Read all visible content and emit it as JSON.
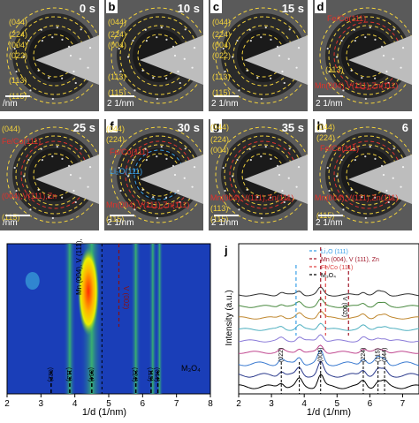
{
  "colors": {
    "yellow": "#f2d23c",
    "red": "#e0322b",
    "blue": "#3aa0e8",
    "diffraction_bg": "#5a5a5a"
  },
  "panels": [
    {
      "letter": "",
      "time": "0 s",
      "labels": [
        "(044)",
        "(224)",
        "(004)",
        "(022)",
        "(113)",
        "(115)"
      ],
      "scale": "/nm"
    },
    {
      "letter": "b",
      "time": "10 s",
      "labels": [
        "(044)",
        "(224)",
        "(004)",
        "(113)",
        "(115)"
      ],
      "scale": "2 1/nm"
    },
    {
      "letter": "c",
      "time": "15 s",
      "labels": [
        "(044)",
        "(224)",
        "(004)",
        "(022)",
        "(113)",
        "(115)"
      ],
      "scale": "2 1/nm"
    },
    {
      "letter": "d",
      "time": "",
      "labels": [
        "Fe/Co(111)",
        "(113)",
        "Mn(004),V(111),Zn(111)"
      ],
      "scale": "2 1/nm"
    },
    {
      "letter": "",
      "time": "25 s",
      "labels": [
        "(044)",
        "Fe/Co(111)",
        "(004),V(111),Zn",
        "(115)"
      ],
      "scale": "/nm"
    },
    {
      "letter": "f",
      "time": "30 s",
      "labels": [
        "(044)",
        "(224)",
        "Fe/Co(111)",
        "Li₂O(111)",
        "Mn(004),V(111),Zn(111)",
        "(115)"
      ],
      "scale": "2 1/nm"
    },
    {
      "letter": "g",
      "time": "35 s",
      "labels": [
        "(044)",
        "(224)",
        "(004)",
        "Mn(004),V(111),Zn(111)",
        "(113)",
        "(115)"
      ],
      "scale": "2 1/nm"
    },
    {
      "letter": "h",
      "time": "6",
      "labels": [
        "(044)",
        "(224)",
        "Fe/Co(111)",
        "Mn(004),V(111),Zn(111)",
        "(115)"
      ],
      "scale": "2 1/nm"
    }
  ],
  "heatmap": {
    "xlabel": "1/d (1/nm)",
    "xticks": [
      "2",
      "3",
      "4",
      "5",
      "6",
      "7",
      "8"
    ],
    "peak_labels": [
      "(022)",
      "(113)",
      "(004)",
      "(224)",
      "(115)",
      "(044)"
    ],
    "peak_positions": [
      3.3,
      3.85,
      4.5,
      5.8,
      6.25,
      6.45
    ],
    "phase_label": "M₃O₄",
    "annotations": [
      "Mn (004), V (111), Zn (111)",
      "V (002)"
    ]
  },
  "profiles": {
    "letter": "j",
    "ylabel": "Intensity (a.u.)",
    "xlabel": "1/d (1/nm)",
    "xticks": [
      "2",
      "3",
      "4",
      "5",
      "6",
      "7"
    ],
    "legend": [
      {
        "text": "Li₂O (111)",
        "color": "#3aa0e8"
      },
      {
        "text": "Mn (004), V (111), Zn",
        "color": "#a0182a"
      },
      {
        "text": "Fe/Co (111)",
        "color": "#e04848"
      },
      {
        "text": "M₃O₄",
        "color": "#000000"
      }
    ],
    "peak_labels": [
      "(022)",
      "(004)",
      "(224)",
      "(115)",
      "(044)"
    ],
    "annotation": "V (002)",
    "line_colors": [
      "#000000",
      "#2b3a8c",
      "#3a7ad0",
      "#c04890",
      "#8a7ad8",
      "#50b0c0",
      "#c08830",
      "#4a8a40",
      "#303030"
    ]
  }
}
